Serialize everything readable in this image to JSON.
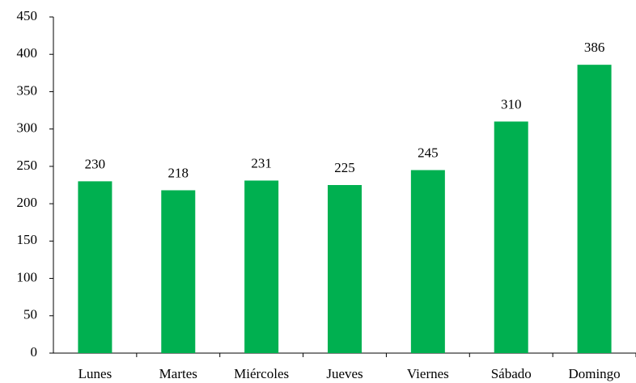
{
  "chart_data": {
    "type": "bar",
    "categories": [
      "Lunes",
      "Martes",
      "Miércoles",
      "Jueves",
      "Viernes",
      "Sábado",
      "Domingo"
    ],
    "values": [
      230,
      218,
      231,
      225,
      245,
      310,
      386
    ],
    "color": "#00b050",
    "ylim": [
      0,
      450
    ],
    "yticks": [
      0,
      50,
      100,
      150,
      200,
      250,
      300,
      350,
      400,
      450
    ],
    "grid": false
  }
}
